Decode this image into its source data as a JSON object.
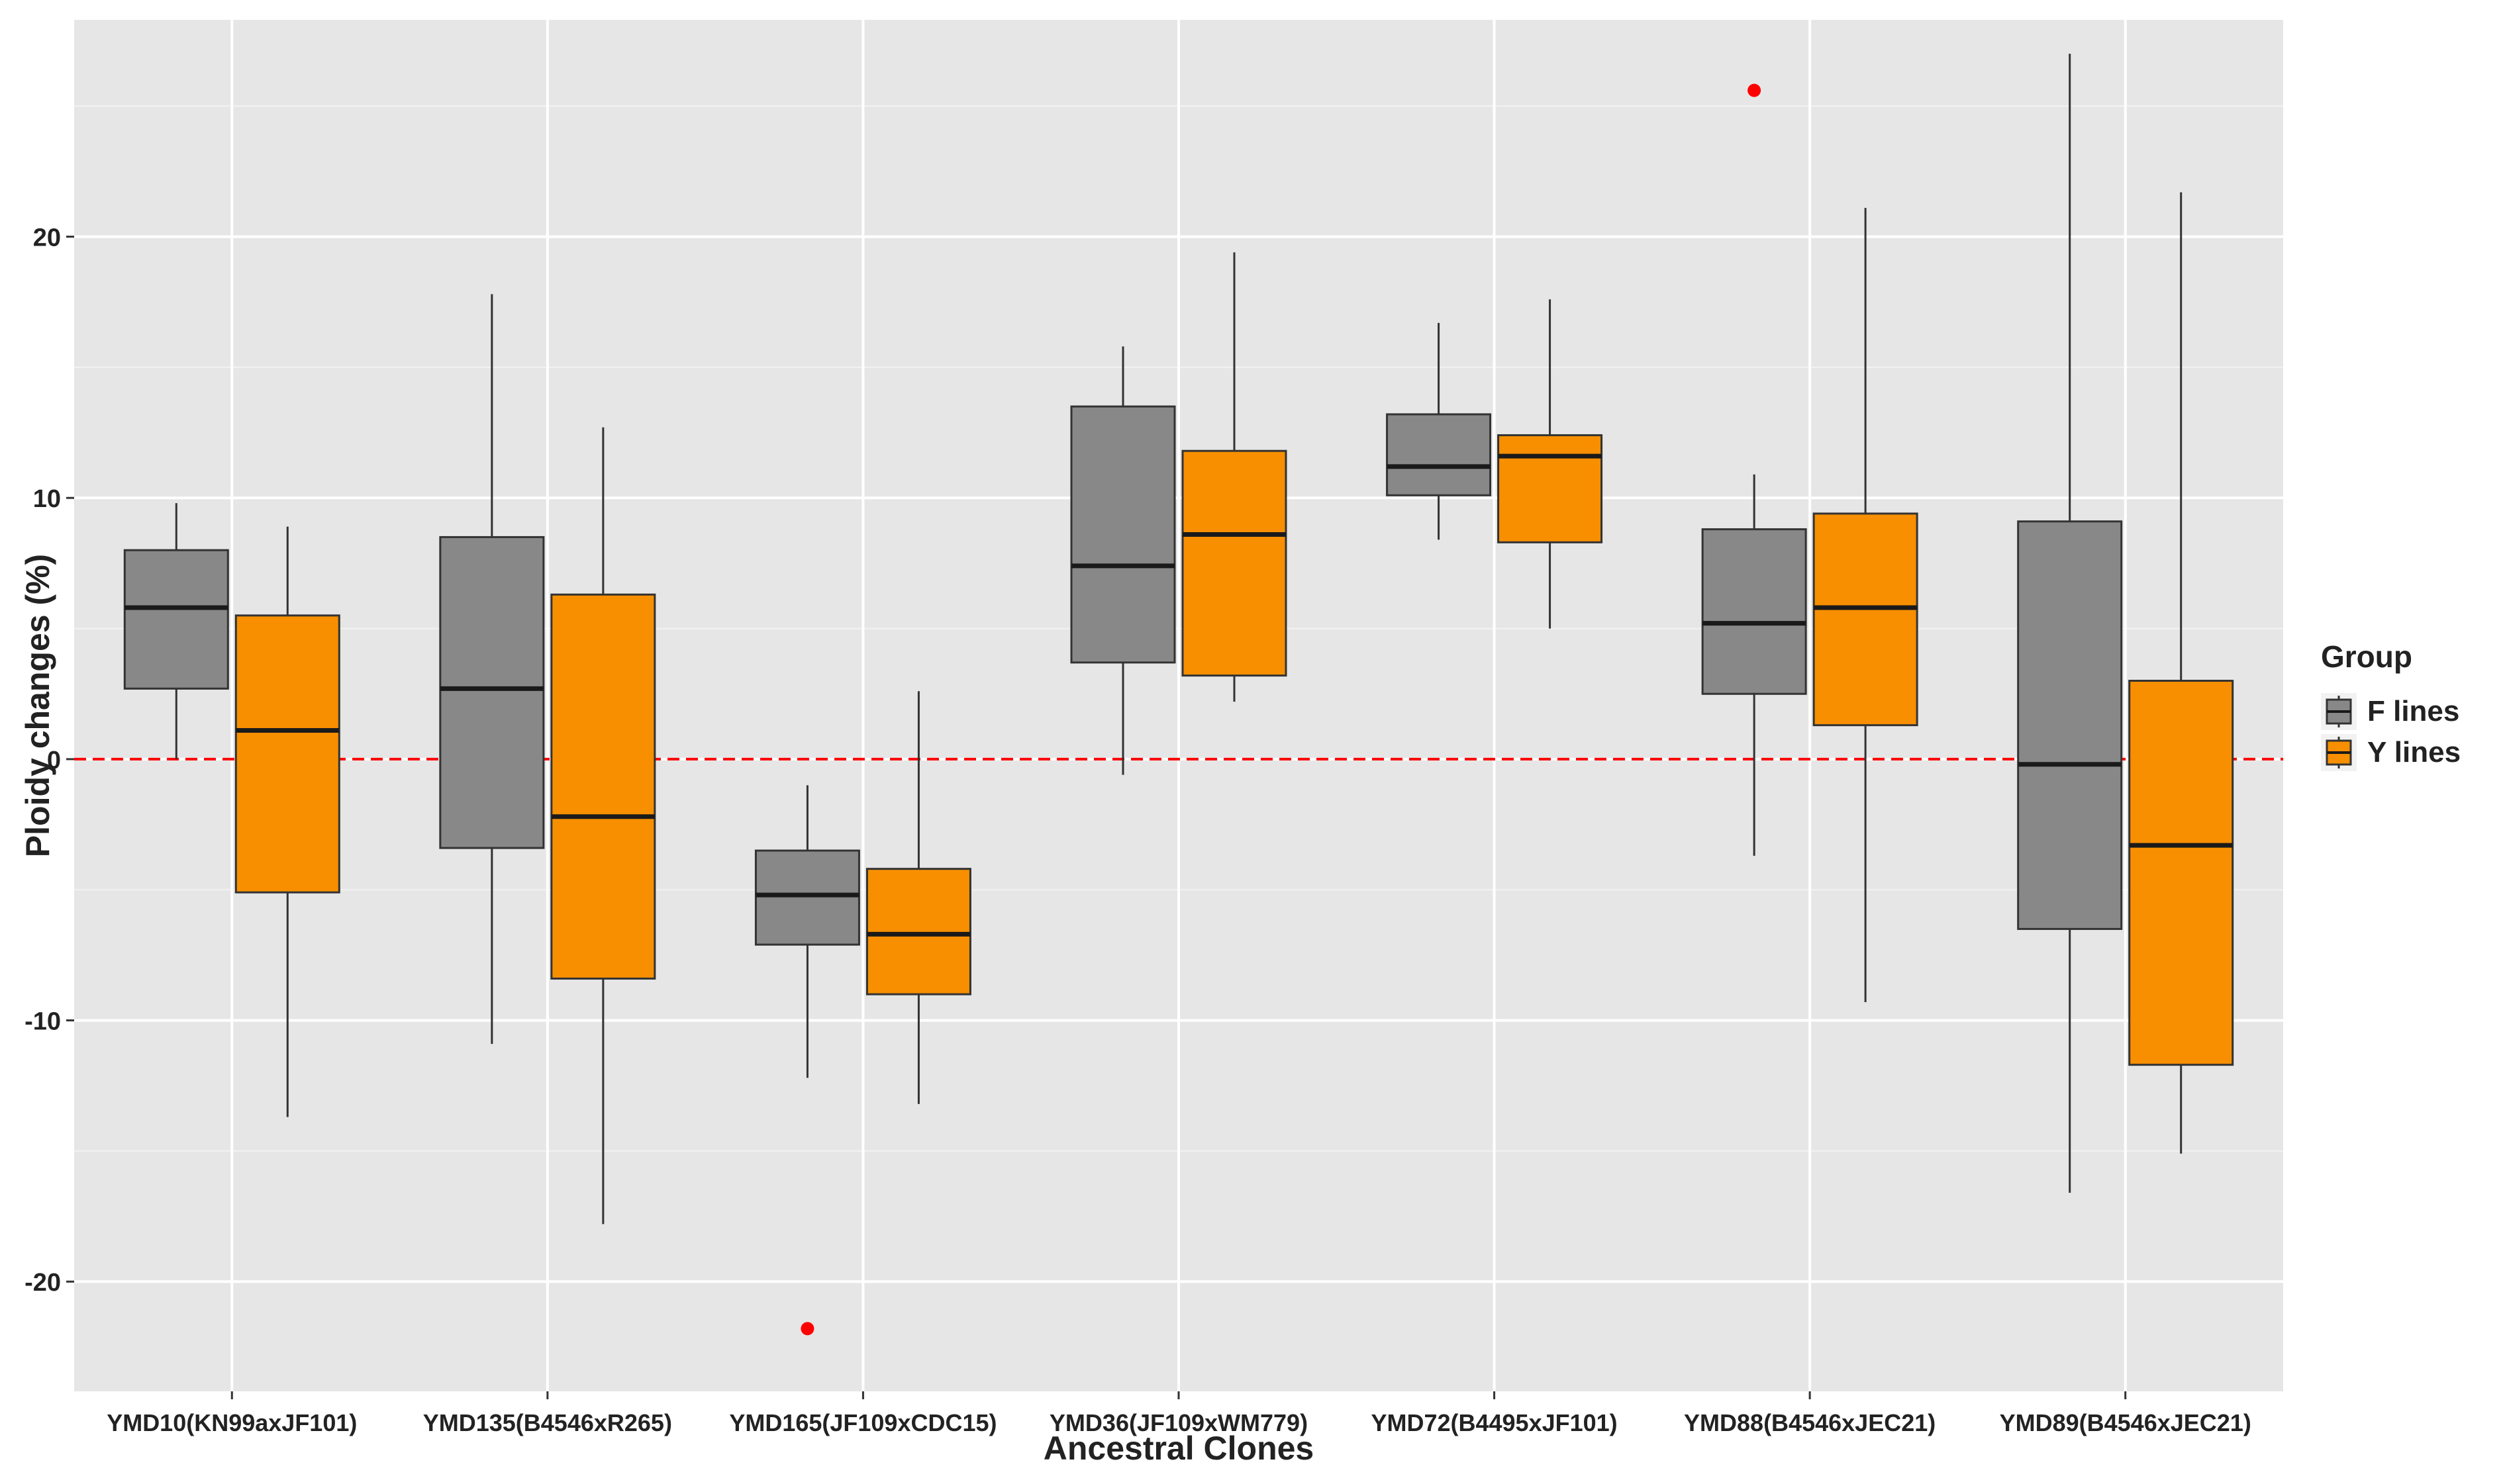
{
  "chart_data": {
    "type": "boxplot",
    "xlabel": "Ancestral Clones",
    "ylabel": "Ploidy changes (%)",
    "ylim": [
      -24.2,
      28.3
    ],
    "y_ticks": [
      -20,
      -10,
      0,
      10,
      20
    ],
    "y_tick_labels": [
      "-20",
      "-10",
      "0",
      "10",
      "20"
    ],
    "reference_line": {
      "y": 0,
      "style": "dashed",
      "color": "#ff0000"
    },
    "grid": true,
    "legend": {
      "title": "Group",
      "position": "right",
      "entries": [
        {
          "name": "F lines",
          "color": "#888888"
        },
        {
          "name": "Y lines",
          "color": "#f78f00"
        }
      ]
    },
    "categories": [
      "YMD10(KN99axJF101)",
      "YMD135(B4546xR265)",
      "YMD165(JF109xCDC15)",
      "YMD36(JF109xWM779)",
      "YMD72(B4495xJF101)",
      "YMD88(B4546xJEC21)",
      "YMD89(B4546xJEC21)"
    ],
    "series": [
      {
        "name": "F lines",
        "color": "#888888",
        "boxes": [
          {
            "min": 0.0,
            "q1": 2.7,
            "median": 5.8,
            "q3": 8.0,
            "max": 9.8,
            "outliers": []
          },
          {
            "min": -10.9,
            "q1": -3.4,
            "median": 2.7,
            "q3": 8.5,
            "max": 17.8,
            "outliers": []
          },
          {
            "min": -12.2,
            "q1": -7.1,
            "median": -5.2,
            "q3": -3.5,
            "max": -1.0,
            "outliers": [
              -21.8
            ]
          },
          {
            "min": -0.6,
            "q1": 3.7,
            "median": 7.4,
            "q3": 13.5,
            "max": 15.8,
            "outliers": []
          },
          {
            "min": 8.4,
            "q1": 10.1,
            "median": 11.2,
            "q3": 13.2,
            "max": 16.7,
            "outliers": []
          },
          {
            "min": -3.7,
            "q1": 2.5,
            "median": 5.2,
            "q3": 8.8,
            "max": 10.9,
            "outliers": [
              25.6
            ]
          },
          {
            "min": -16.6,
            "q1": -6.5,
            "median": -0.2,
            "q3": 9.1,
            "max": 27.0,
            "outliers": []
          }
        ]
      },
      {
        "name": "Y lines",
        "color": "#f78f00",
        "boxes": [
          {
            "min": -13.7,
            "q1": -5.1,
            "median": 1.1,
            "q3": 5.5,
            "max": 8.9,
            "outliers": []
          },
          {
            "min": -17.8,
            "q1": -8.4,
            "median": -2.2,
            "q3": 6.3,
            "max": 12.7,
            "outliers": []
          },
          {
            "min": -13.2,
            "q1": -9.0,
            "median": -6.7,
            "q3": -4.2,
            "max": 2.6,
            "outliers": []
          },
          {
            "min": 2.2,
            "q1": 3.2,
            "median": 8.6,
            "q3": 11.8,
            "max": 19.4,
            "outliers": []
          },
          {
            "min": 5.0,
            "q1": 8.3,
            "median": 11.6,
            "q3": 12.4,
            "max": 17.6,
            "outliers": []
          },
          {
            "min": -9.3,
            "q1": 1.3,
            "median": 5.8,
            "q3": 9.4,
            "max": 21.1,
            "outliers": []
          },
          {
            "min": -15.1,
            "q1": -11.7,
            "median": -3.3,
            "q3": 3.0,
            "max": 21.7,
            "outliers": []
          }
        ]
      }
    ]
  }
}
